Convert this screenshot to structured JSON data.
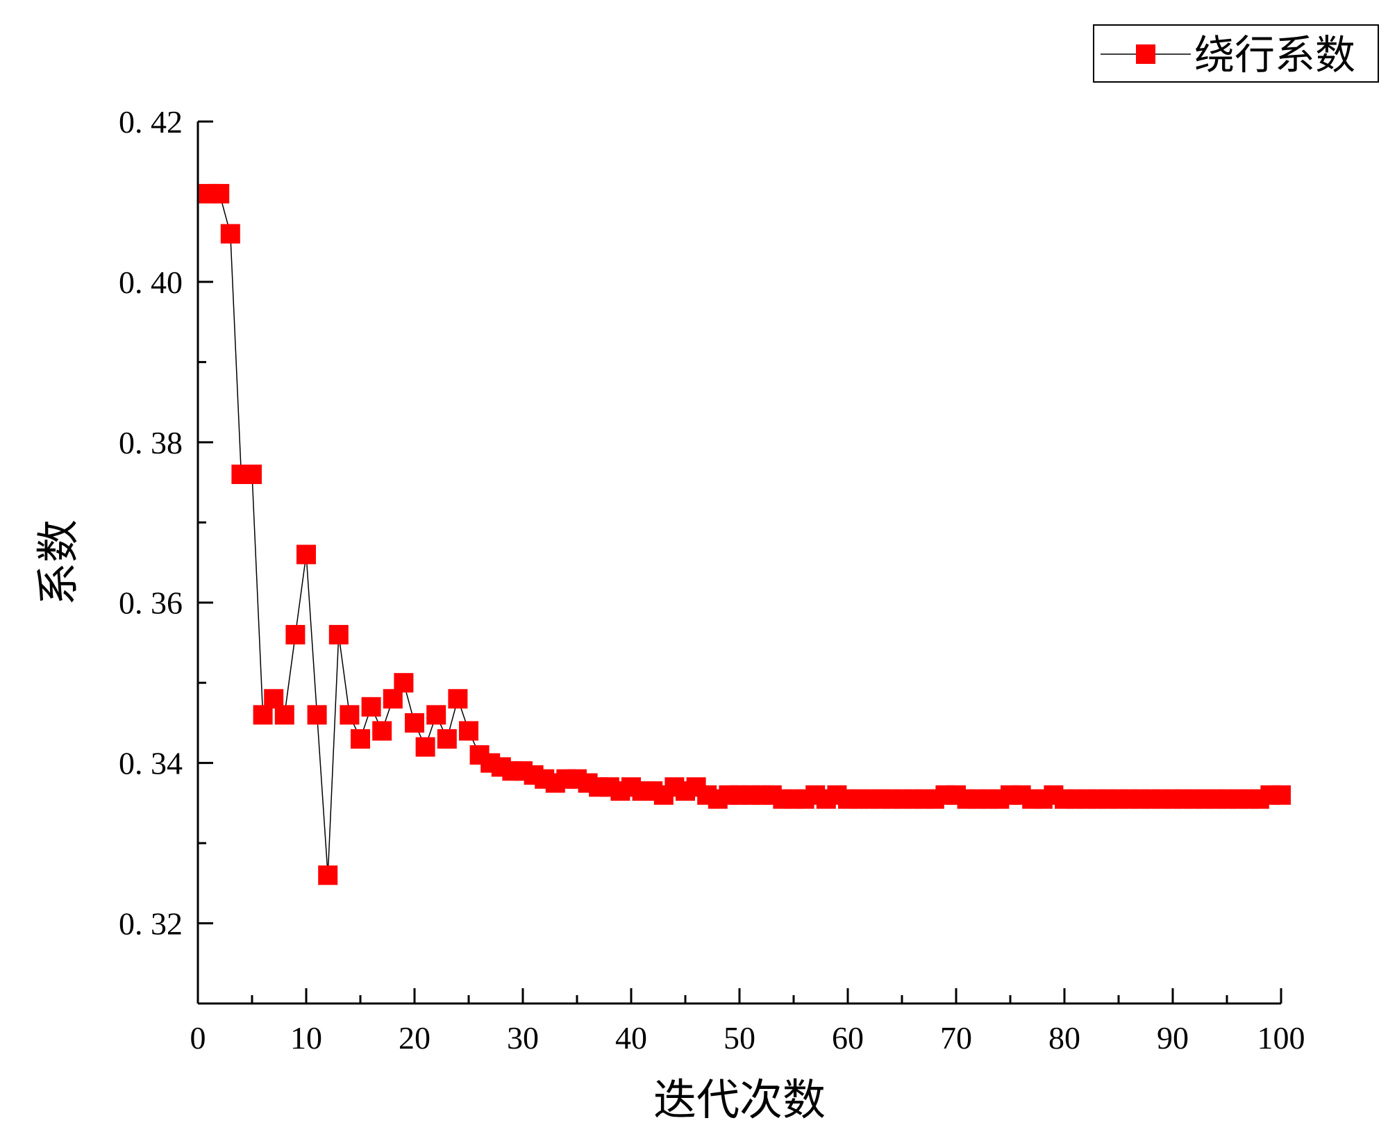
{
  "chart_data": {
    "type": "line",
    "title": "",
    "xlabel": "迭代次数",
    "ylabel": "系数",
    "xlim": [
      0,
      100
    ],
    "ylim": [
      0.31,
      0.42
    ],
    "xticks": [
      0,
      10,
      20,
      30,
      40,
      50,
      60,
      70,
      80,
      90,
      100
    ],
    "yticks": [
      0.32,
      0.34,
      0.36,
      0.38,
      0.4,
      0.42
    ],
    "ytick_labels": [
      "0. 32",
      "0. 34",
      "0. 36",
      "0. 38",
      "0. 40",
      "0. 42"
    ],
    "grid": false,
    "legend_position": "top-right",
    "series": [
      {
        "name": "绕行系数",
        "color": "#ff0000",
        "marker": "square",
        "line_color": "#000000",
        "x": [
          1,
          2,
          3,
          4,
          5,
          6,
          7,
          8,
          9,
          10,
          11,
          12,
          13,
          14,
          15,
          16,
          17,
          18,
          19,
          20,
          21,
          22,
          23,
          24,
          25,
          26,
          27,
          28,
          29,
          30,
          31,
          32,
          33,
          34,
          35,
          36,
          37,
          38,
          39,
          40,
          41,
          42,
          43,
          44,
          45,
          46,
          47,
          48,
          49,
          50,
          51,
          52,
          53,
          54,
          55,
          56,
          57,
          58,
          59,
          60,
          61,
          62,
          63,
          64,
          65,
          66,
          67,
          68,
          69,
          70,
          71,
          72,
          73,
          74,
          75,
          76,
          77,
          78,
          79,
          80,
          81,
          82,
          83,
          84,
          85,
          86,
          87,
          88,
          89,
          90,
          91,
          92,
          93,
          94,
          95,
          96,
          97,
          98,
          99,
          100
        ],
        "values": [
          0.411,
          0.411,
          0.406,
          0.376,
          0.376,
          0.346,
          0.348,
          0.346,
          0.356,
          0.366,
          0.346,
          0.326,
          0.356,
          0.346,
          0.343,
          0.347,
          0.344,
          0.348,
          0.35,
          0.345,
          0.342,
          0.346,
          0.343,
          0.348,
          0.344,
          0.341,
          0.34,
          0.3395,
          0.339,
          0.339,
          0.3385,
          0.338,
          0.3375,
          0.338,
          0.338,
          0.3375,
          0.337,
          0.337,
          0.3365,
          0.337,
          0.3365,
          0.3365,
          0.336,
          0.337,
          0.3365,
          0.337,
          0.336,
          0.3355,
          0.336,
          0.336,
          0.336,
          0.336,
          0.336,
          0.3355,
          0.3355,
          0.3355,
          0.336,
          0.3355,
          0.336,
          0.3355,
          0.3355,
          0.3355,
          0.3355,
          0.3355,
          0.3355,
          0.3355,
          0.3355,
          0.3355,
          0.336,
          0.336,
          0.3355,
          0.3355,
          0.3355,
          0.3355,
          0.336,
          0.336,
          0.3355,
          0.3355,
          0.336,
          0.3355,
          0.3355,
          0.3355,
          0.3355,
          0.3355,
          0.3355,
          0.3355,
          0.3355,
          0.3355,
          0.3355,
          0.3355,
          0.3355,
          0.3355,
          0.3355,
          0.3355,
          0.3355,
          0.3355,
          0.3355,
          0.3355,
          0.336,
          0.336
        ]
      }
    ]
  }
}
